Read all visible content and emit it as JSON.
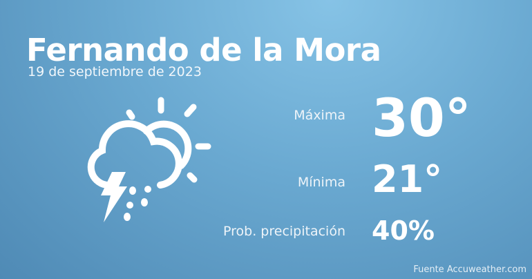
{
  "city": "Fernando de la Mora",
  "date": "19 de septiembre de 2023",
  "weather_icon": "thunderstorm-partly-sunny-icon",
  "max": {
    "label": "Máxima",
    "value": "30°"
  },
  "min": {
    "label": "Mínima",
    "value": "21°"
  },
  "precip": {
    "label": "Prob. precipitación",
    "value": "40%"
  },
  "source": "Fuente Accuweather.com"
}
